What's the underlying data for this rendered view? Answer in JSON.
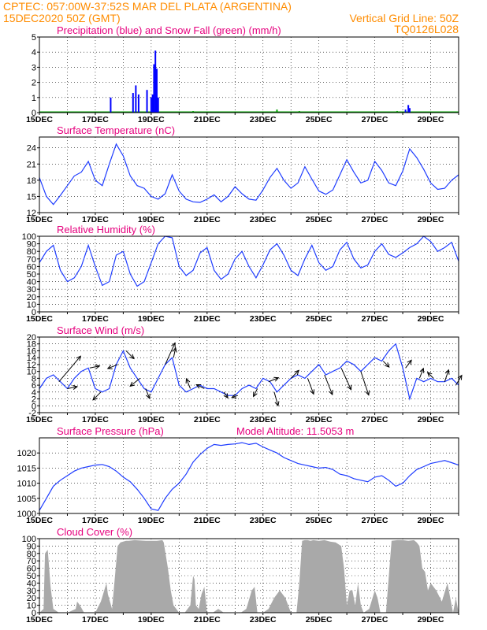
{
  "header": {
    "line1": "CPTEC:   057:00W-37:52S   MAR DEL PLATA (ARGENTINA)",
    "line2_left": "15DEC2020 50Z (GMT)",
    "line2_right": "Vertical Grid Line: 50Z",
    "line3_right": "TQ0126L028"
  },
  "colors": {
    "header": "#ff8c00",
    "title": "#e6007e",
    "precip": "#0000ff",
    "snow": "#00a000",
    "line": "#1e3cff",
    "wind": "#000000",
    "cloud": "#a9a9a9",
    "grid": "#000000"
  },
  "chart_data": [
    {
      "id": "precip",
      "type": "bar",
      "title": "Precipitation (blue) and Snow Fall (green) (mm/h)",
      "ylim": [
        0,
        5
      ],
      "yticks": [
        0,
        1,
        2,
        3,
        4,
        5
      ],
      "xlim": [
        0,
        15
      ],
      "xticks": [
        "15DEC",
        "17DEC",
        "19DEC",
        "21DEC",
        "23DEC",
        "25DEC",
        "27DEC",
        "29DEC"
      ],
      "precip": [
        [
          2.55,
          1.0
        ],
        [
          3.35,
          1.3
        ],
        [
          3.45,
          1.8
        ],
        [
          3.55,
          1.2
        ],
        [
          3.85,
          1.5
        ],
        [
          4.0,
          1.0
        ],
        [
          4.05,
          1.2
        ],
        [
          4.1,
          3.2
        ],
        [
          4.15,
          4.1
        ],
        [
          4.2,
          2.9
        ],
        [
          4.25,
          1.0
        ],
        [
          13.1,
          0.2
        ],
        [
          13.2,
          0.5
        ],
        [
          13.25,
          0.3
        ]
      ],
      "snow": [
        [
          1.2,
          0.05
        ],
        [
          3.0,
          0.05
        ],
        [
          5.5,
          0.1
        ],
        [
          8.5,
          0.2
        ],
        [
          9.3,
          0.1
        ],
        [
          12.8,
          0.1
        ]
      ]
    },
    {
      "id": "temperature",
      "type": "line",
      "title": "Surface Temperature (nC)",
      "ylim": [
        12,
        26
      ],
      "yticks": [
        12,
        15,
        18,
        21,
        24
      ],
      "xlim": [
        0,
        15
      ],
      "xticks": [
        "15DEC",
        "17DEC",
        "19DEC",
        "21DEC",
        "23DEC",
        "25DEC",
        "27DEC",
        "29DEC"
      ],
      "x": [
        0,
        0.25,
        0.5,
        0.75,
        1.0,
        1.25,
        1.5,
        1.75,
        2.0,
        2.25,
        2.5,
        2.75,
        3.0,
        3.25,
        3.5,
        3.75,
        4.0,
        4.25,
        4.5,
        4.75,
        5.0,
        5.25,
        5.5,
        5.75,
        6.0,
        6.25,
        6.5,
        6.75,
        7.0,
        7.25,
        7.5,
        7.75,
        8.0,
        8.25,
        8.5,
        8.75,
        9.0,
        9.25,
        9.5,
        9.75,
        10.0,
        10.25,
        10.5,
        10.75,
        11.0,
        11.25,
        11.5,
        11.75,
        12.0,
        12.25,
        12.5,
        12.75,
        13.0,
        13.25,
        13.5,
        13.75,
        14.0,
        14.25,
        14.5,
        14.75,
        15.0
      ],
      "y": [
        18.5,
        15.0,
        13.5,
        15.2,
        17.0,
        18.8,
        19.5,
        21.5,
        18.0,
        17.0,
        21.0,
        24.7,
        22.5,
        18.8,
        17.0,
        16.5,
        15.0,
        14.5,
        15.5,
        19.0,
        16.0,
        14.5,
        14.0,
        13.9,
        14.5,
        15.3,
        14.0,
        15.0,
        16.8,
        15.5,
        14.5,
        14.3,
        16.2,
        18.5,
        20.2,
        18.0,
        16.5,
        17.5,
        20.5,
        18.2,
        16.0,
        15.4,
        16.2,
        19.0,
        21.8,
        19.5,
        17.5,
        18.0,
        21.5,
        19.8,
        17.5,
        17.0,
        19.7,
        23.8,
        22.2,
        20.0,
        17.5,
        16.3,
        16.5,
        18.0,
        19.0
      ]
    },
    {
      "id": "humidity",
      "type": "line",
      "title": "Relative Humidity (%)",
      "ylim": [
        0,
        100
      ],
      "yticks": [
        0,
        10,
        20,
        30,
        40,
        50,
        60,
        70,
        80,
        90,
        100
      ],
      "xlim": [
        0,
        15
      ],
      "xticks": [
        "15DEC",
        "17DEC",
        "19DEC",
        "21DEC",
        "23DEC",
        "25DEC",
        "27DEC",
        "29DEC"
      ],
      "x": [
        0,
        0.25,
        0.5,
        0.75,
        1.0,
        1.25,
        1.5,
        1.75,
        2.0,
        2.25,
        2.5,
        2.75,
        3.0,
        3.25,
        3.5,
        3.75,
        4.0,
        4.25,
        4.5,
        4.75,
        5.0,
        5.25,
        5.5,
        5.75,
        6.0,
        6.25,
        6.5,
        6.75,
        7.0,
        7.25,
        7.5,
        7.75,
        8.0,
        8.25,
        8.5,
        8.75,
        9.0,
        9.25,
        9.5,
        9.75,
        10.0,
        10.25,
        10.5,
        10.75,
        11.0,
        11.25,
        11.5,
        11.75,
        12.0,
        12.25,
        12.5,
        12.75,
        13.0,
        13.25,
        13.5,
        13.75,
        14.0,
        14.25,
        14.5,
        14.75,
        15.0
      ],
      "y": [
        65,
        80,
        88,
        55,
        40,
        45,
        60,
        88,
        60,
        35,
        40,
        75,
        80,
        50,
        34,
        40,
        65,
        90,
        100,
        98,
        60,
        48,
        55,
        78,
        85,
        55,
        43,
        50,
        70,
        80,
        60,
        45,
        62,
        82,
        90,
        75,
        55,
        48,
        70,
        88,
        65,
        55,
        60,
        82,
        92,
        70,
        58,
        62,
        80,
        90,
        76,
        72,
        78,
        85,
        90,
        100,
        93,
        80,
        85,
        92,
        67
      ]
    },
    {
      "id": "wind",
      "type": "line",
      "title": "Surface Wind (m/s)",
      "ylim": [
        -2,
        20
      ],
      "yticks": [
        -2,
        0,
        2,
        4,
        6,
        8,
        10,
        12,
        14,
        16,
        18,
        20
      ],
      "xlim": [
        0,
        15
      ],
      "xticks": [
        "15DEC",
        "17DEC",
        "19DEC",
        "21DEC",
        "23DEC",
        "25DEC",
        "27DEC",
        "29DEC"
      ],
      "x": [
        0,
        0.25,
        0.5,
        0.75,
        1.0,
        1.25,
        1.5,
        1.75,
        2.0,
        2.25,
        2.5,
        2.75,
        3.0,
        3.25,
        3.5,
        3.75,
        4.0,
        4.25,
        4.5,
        4.75,
        5.0,
        5.25,
        5.5,
        5.75,
        6.0,
        6.25,
        6.5,
        6.75,
        7.0,
        7.25,
        7.5,
        7.75,
        8.0,
        8.25,
        8.5,
        8.75,
        9.0,
        9.25,
        9.5,
        9.75,
        10.0,
        10.25,
        10.5,
        10.75,
        11.0,
        11.25,
        11.5,
        11.75,
        12.0,
        12.25,
        12.5,
        12.75,
        13.0,
        13.25,
        13.5,
        13.75,
        14.0,
        14.25,
        14.5,
        14.75,
        15.0
      ],
      "y": [
        5,
        8,
        9,
        7,
        5,
        8,
        10,
        11,
        5,
        4,
        5,
        12,
        16,
        11,
        8,
        5,
        4,
        8,
        12,
        14,
        6,
        4,
        5,
        6,
        5,
        5,
        4,
        3,
        3,
        5,
        6,
        5,
        8,
        7,
        4,
        6,
        8,
        9,
        8,
        10,
        12,
        9,
        10,
        11,
        13,
        12,
        10,
        12,
        14,
        13,
        16,
        18,
        11,
        2,
        8,
        7,
        8,
        7,
        7,
        8,
        6
      ],
      "vectors": [
        [
          0.7,
          11,
          13
        ],
        [
          1.0,
          5,
          1
        ],
        [
          1.8,
          5,
          1
        ],
        [
          2.2,
          -4,
          -4
        ],
        [
          2.8,
          -5,
          -2
        ],
        [
          3.1,
          4,
          -4
        ],
        [
          3.6,
          -5,
          -4
        ],
        [
          3.8,
          2,
          -5
        ],
        [
          4.5,
          5,
          11
        ],
        [
          4.8,
          1,
          5
        ],
        [
          5.4,
          -2,
          5
        ],
        [
          5.9,
          -4,
          2
        ],
        [
          6.6,
          2,
          -3
        ],
        [
          7.1,
          -3,
          -1
        ],
        [
          7.8,
          -2,
          -4
        ],
        [
          8.2,
          5,
          2
        ],
        [
          8.4,
          2,
          -7
        ],
        [
          9.0,
          4,
          4
        ],
        [
          9.6,
          3,
          -8
        ],
        [
          10.2,
          4,
          -10
        ],
        [
          10.8,
          5,
          -11
        ],
        [
          11.5,
          4,
          -12
        ],
        [
          12.3,
          3,
          -3
        ],
        [
          13.1,
          3,
          4
        ],
        [
          13.6,
          2,
          5
        ],
        [
          14.1,
          -3,
          3
        ],
        [
          14.5,
          2,
          6
        ],
        [
          14.9,
          3,
          5
        ]
      ]
    },
    {
      "id": "pressure",
      "type": "line",
      "title": "Surface Pressure (hPa)",
      "annotation": "Model Altitude: 11.5053 m",
      "ylim": [
        1000,
        1025
      ],
      "yticks": [
        1000,
        1005,
        1010,
        1015,
        1020
      ],
      "xlim": [
        0,
        15
      ],
      "xticks": [
        "15DEC",
        "17DEC",
        "19DEC",
        "21DEC",
        "23DEC",
        "25DEC",
        "27DEC",
        "29DEC"
      ],
      "x": [
        0,
        0.25,
        0.5,
        0.75,
        1.0,
        1.25,
        1.5,
        1.75,
        2.0,
        2.25,
        2.5,
        2.75,
        3.0,
        3.25,
        3.5,
        3.75,
        4.0,
        4.25,
        4.5,
        4.75,
        5.0,
        5.25,
        5.5,
        5.75,
        6.0,
        6.25,
        6.5,
        6.75,
        7.0,
        7.25,
        7.5,
        7.75,
        8.0,
        8.25,
        8.5,
        8.75,
        9.0,
        9.25,
        9.5,
        9.75,
        10.0,
        10.25,
        10.5,
        10.75,
        11.0,
        11.25,
        11.5,
        11.75,
        12.0,
        12.25,
        12.5,
        12.75,
        13.0,
        13.25,
        13.5,
        13.75,
        14.0,
        14.25,
        14.5,
        14.75,
        15.0
      ],
      "y": [
        1001.0,
        1005.0,
        1009.0,
        1011.0,
        1012.5,
        1014.0,
        1015.0,
        1015.5,
        1016.0,
        1016.2,
        1015.5,
        1014.0,
        1012.0,
        1010.5,
        1008.0,
        1005.0,
        1001.5,
        1001.0,
        1005.0,
        1008.0,
        1010.0,
        1013.0,
        1017.0,
        1019.5,
        1021.5,
        1022.8,
        1022.5,
        1022.8,
        1023.0,
        1023.4,
        1022.8,
        1023.2,
        1022.0,
        1021.0,
        1020.0,
        1018.5,
        1017.5,
        1016.5,
        1016.0,
        1015.5,
        1015.0,
        1015.2,
        1014.5,
        1013.0,
        1012.5,
        1011.5,
        1011.0,
        1010.5,
        1012.0,
        1012.5,
        1011.0,
        1009.0,
        1010.0,
        1012.5,
        1014.5,
        1015.5,
        1016.5,
        1017.0,
        1017.5,
        1016.8,
        1016.0
      ]
    },
    {
      "id": "cloud",
      "type": "area",
      "title": "Cloud Cover (%)",
      "ylim": [
        0,
        100
      ],
      "yticks": [
        0,
        10,
        20,
        30,
        40,
        50,
        60,
        70,
        80,
        90,
        100
      ],
      "xlim": [
        0,
        15
      ],
      "xticks": [
        "15DEC",
        "17DEC",
        "19DEC",
        "21DEC",
        "23DEC",
        "25DEC",
        "27DEC",
        "29DEC"
      ],
      "x": [
        0,
        0.15,
        0.2,
        0.3,
        0.4,
        0.5,
        0.7,
        1.0,
        1.3,
        1.35,
        1.45,
        1.6,
        1.8,
        2.0,
        2.2,
        2.4,
        2.45,
        2.6,
        2.8,
        2.9,
        3.0,
        3.1,
        3.2,
        3.4,
        3.8,
        4.2,
        4.4,
        4.45,
        4.6,
        4.7,
        4.8,
        5.0,
        5.2,
        5.4,
        5.5,
        5.55,
        5.6,
        5.7,
        5.8,
        5.9,
        6.0,
        6.2,
        6.4,
        6.6,
        6.8,
        7.0,
        7.2,
        7.4,
        7.6,
        7.7,
        7.8,
        7.9,
        8.0,
        8.2,
        8.4,
        8.6,
        8.8,
        9.0,
        9.2,
        9.3,
        9.4,
        9.5,
        9.6,
        9.7,
        9.8,
        10.0,
        10.2,
        10.4,
        10.6,
        10.8,
        10.9,
        11.0,
        11.1,
        11.2,
        11.3,
        11.4,
        11.5,
        11.6,
        11.8,
        12.0,
        12.1,
        12.2,
        12.4,
        12.6,
        12.8,
        13.0,
        13.2,
        13.4,
        13.5,
        13.6,
        13.7,
        13.8,
        13.9,
        14.0,
        14.2,
        14.4,
        14.6,
        14.8,
        14.9,
        15.0
      ],
      "y": [
        0,
        5,
        80,
        85,
        35,
        5,
        0,
        0,
        5,
        15,
        10,
        0,
        0,
        0,
        15,
        40,
        25,
        5,
        90,
        95,
        96,
        97,
        97,
        98,
        97,
        97,
        98,
        95,
        60,
        30,
        10,
        0,
        0,
        10,
        50,
        45,
        10,
        5,
        25,
        35,
        0,
        0,
        5,
        0,
        0,
        0,
        0,
        5,
        30,
        35,
        0,
        0,
        0,
        5,
        20,
        30,
        20,
        0,
        0,
        40,
        97,
        98,
        98,
        97,
        98,
        97,
        98,
        96,
        95,
        90,
        60,
        10,
        30,
        30,
        10,
        40,
        10,
        0,
        5,
        30,
        20,
        0,
        0,
        97,
        98,
        98,
        97,
        98,
        95,
        90,
        60,
        55,
        30,
        40,
        30,
        15,
        40,
        0,
        20,
        0
      ]
    }
  ]
}
